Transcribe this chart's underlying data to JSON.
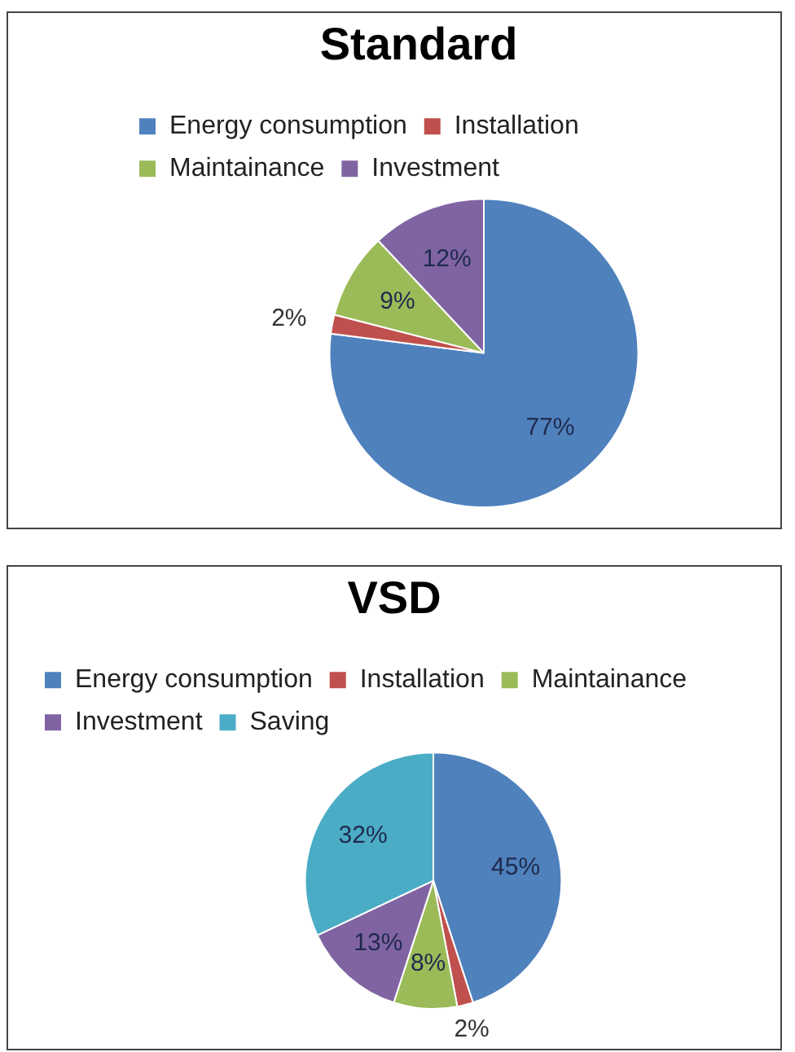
{
  "chart_data": [
    {
      "type": "pie",
      "title": "Standard",
      "categories": [
        "Energy consumption",
        "Installation",
        "Maintainance",
        "Investment"
      ],
      "values": [
        77,
        2,
        9,
        12
      ],
      "colors": [
        "#4f81bd",
        "#c0504d",
        "#9bbb59",
        "#8064a2"
      ],
      "value_labels": [
        "77%",
        "2%",
        "9%",
        "12%"
      ],
      "legend": "top"
    },
    {
      "type": "pie",
      "title": "VSD",
      "categories": [
        "Energy consumption",
        "Installation",
        "Maintainance",
        "Investment",
        "Saving"
      ],
      "values": [
        45,
        2,
        8,
        13,
        32
      ],
      "colors": [
        "#4f81bd",
        "#c0504d",
        "#9bbb59",
        "#8064a2",
        "#4bacc6"
      ],
      "value_labels": [
        "45%",
        "2%",
        "8%",
        "13%",
        "32%"
      ],
      "legend": "top"
    }
  ]
}
